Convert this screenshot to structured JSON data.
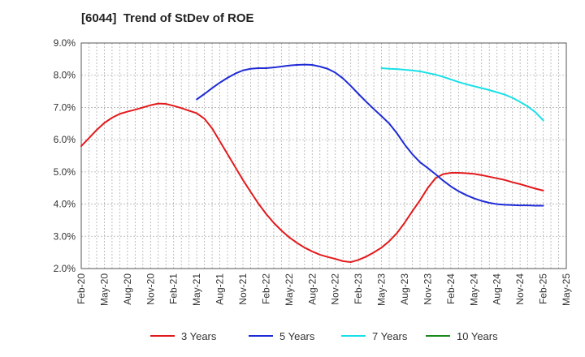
{
  "chart_data": {
    "type": "line",
    "title": "[6044]  Trend of StDev of ROE",
    "xlabel": "",
    "ylabel": "",
    "x_ticks": [
      "Feb-20",
      "May-20",
      "Aug-20",
      "Nov-20",
      "Feb-21",
      "May-21",
      "Aug-21",
      "Nov-21",
      "Feb-22",
      "May-22",
      "Aug-22",
      "Nov-22",
      "Feb-23",
      "May-23",
      "Aug-23",
      "Nov-23",
      "Feb-24",
      "May-24",
      "Aug-24",
      "Nov-24",
      "Feb-25",
      "May-25"
    ],
    "y_ticks": [
      "2.0%",
      "3.0%",
      "4.0%",
      "5.0%",
      "6.0%",
      "7.0%",
      "8.0%",
      "9.0%"
    ],
    "ylim": [
      2.0,
      9.0
    ],
    "y_unit": "%",
    "grid": true,
    "legend_position": "bottom",
    "series": [
      {
        "name": "3 Years",
        "color": "#e31a1c",
        "x": [
          "Feb-20",
          "Mar-20",
          "Apr-20",
          "May-20",
          "Jun-20",
          "Jul-20",
          "Aug-20",
          "Sep-20",
          "Oct-20",
          "Nov-20",
          "Dec-20",
          "Jan-21",
          "Feb-21",
          "Mar-21",
          "Apr-21",
          "May-21",
          "Jun-21",
          "Jul-21",
          "Aug-21",
          "Sep-21",
          "Oct-21",
          "Nov-21",
          "Dec-21",
          "Jan-22",
          "Feb-22",
          "Mar-22",
          "Apr-22",
          "May-22",
          "Jun-22",
          "Jul-22",
          "Aug-22",
          "Sep-22",
          "Oct-22",
          "Nov-22",
          "Dec-22",
          "Jan-23",
          "Feb-23",
          "Mar-23",
          "Apr-23",
          "May-23",
          "Jun-23",
          "Jul-23",
          "Aug-23",
          "Sep-23",
          "Oct-23",
          "Nov-23",
          "Dec-23",
          "Jan-24",
          "Feb-24",
          "Mar-24",
          "Apr-24",
          "May-24",
          "Jun-24",
          "Jul-24",
          "Aug-24",
          "Sep-24",
          "Oct-24",
          "Nov-24",
          "Dec-24",
          "Jan-25",
          "Feb-25"
        ],
        "values": [
          5.8,
          6.05,
          6.3,
          6.52,
          6.68,
          6.8,
          6.87,
          6.93,
          7.0,
          7.07,
          7.12,
          7.11,
          7.05,
          6.98,
          6.9,
          6.82,
          6.65,
          6.35,
          5.95,
          5.55,
          5.15,
          4.75,
          4.38,
          4.02,
          3.7,
          3.42,
          3.18,
          2.97,
          2.8,
          2.65,
          2.53,
          2.43,
          2.36,
          2.3,
          2.23,
          2.2,
          2.27,
          2.37,
          2.5,
          2.65,
          2.85,
          3.1,
          3.42,
          3.78,
          4.12,
          4.5,
          4.8,
          4.93,
          4.97,
          4.97,
          4.96,
          4.94,
          4.9,
          4.85,
          4.8,
          4.75,
          4.68,
          4.62,
          4.55,
          4.48,
          4.42
        ]
      },
      {
        "name": "5 Years",
        "color": "#1f2bd6",
        "x": [
          "May-21",
          "Jun-21",
          "Jul-21",
          "Aug-21",
          "Sep-21",
          "Oct-21",
          "Nov-21",
          "Dec-21",
          "Jan-22",
          "Feb-22",
          "Mar-22",
          "Apr-22",
          "May-22",
          "Jun-22",
          "Jul-22",
          "Aug-22",
          "Sep-22",
          "Oct-22",
          "Nov-22",
          "Dec-22",
          "Jan-23",
          "Feb-23",
          "Mar-23",
          "Apr-23",
          "May-23",
          "Jun-23",
          "Jul-23",
          "Aug-23",
          "Sep-23",
          "Oct-23",
          "Nov-23",
          "Dec-23",
          "Jan-24",
          "Feb-24",
          "Mar-24",
          "Apr-24",
          "May-24",
          "Jun-24",
          "Jul-24",
          "Aug-24",
          "Sep-24",
          "Oct-24",
          "Nov-24",
          "Dec-24",
          "Jan-25",
          "Feb-25"
        ],
        "values": [
          7.25,
          7.42,
          7.6,
          7.77,
          7.92,
          8.05,
          8.15,
          8.2,
          8.22,
          8.22,
          8.24,
          8.27,
          8.3,
          8.32,
          8.33,
          8.32,
          8.27,
          8.2,
          8.08,
          7.9,
          7.67,
          7.42,
          7.18,
          6.95,
          6.73,
          6.5,
          6.2,
          5.85,
          5.55,
          5.3,
          5.12,
          4.93,
          4.73,
          4.55,
          4.4,
          4.28,
          4.18,
          4.1,
          4.04,
          4.0,
          3.98,
          3.97,
          3.96,
          3.96,
          3.95,
          3.95
        ]
      },
      {
        "name": "7 Years",
        "color": "#19e0e8",
        "x": [
          "May-23",
          "Jun-23",
          "Jul-23",
          "Aug-23",
          "Sep-23",
          "Oct-23",
          "Nov-23",
          "Dec-23",
          "Jan-24",
          "Feb-24",
          "Mar-24",
          "Apr-24",
          "May-24",
          "Jun-24",
          "Jul-24",
          "Aug-24",
          "Sep-24",
          "Oct-24",
          "Nov-24",
          "Dec-24",
          "Jan-25",
          "Feb-25"
        ],
        "values": [
          8.22,
          8.2,
          8.19,
          8.17,
          8.15,
          8.12,
          8.07,
          8.02,
          7.95,
          7.87,
          7.79,
          7.72,
          7.66,
          7.6,
          7.54,
          7.47,
          7.4,
          7.3,
          7.17,
          7.03,
          6.85,
          6.6
        ]
      },
      {
        "name": "10 Years",
        "color": "#1b8a1b",
        "x": [],
        "values": []
      }
    ]
  }
}
